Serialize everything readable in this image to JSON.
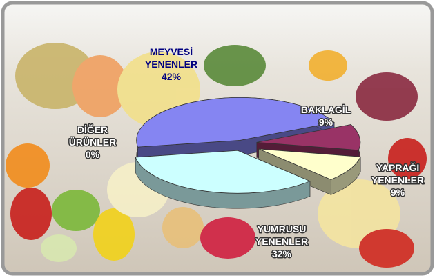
{
  "chart_data": {
    "type": "pie3d",
    "categories": [
      "MEYVESİ YENENLER",
      "BAKLAGİL",
      "YAPRAĞI YENENLER",
      "YUMRUSU YENENLER",
      "DİĞER ÜRÜNLER"
    ],
    "values": [
      42,
      9,
      9,
      32,
      0
    ],
    "value_labels": [
      "42%",
      "9%",
      "9%",
      "32%",
      "0%"
    ],
    "colors": [
      "#8585f2",
      "#993366",
      "#ffffcc",
      "#ccffff",
      "#8c8cf0"
    ]
  }
}
